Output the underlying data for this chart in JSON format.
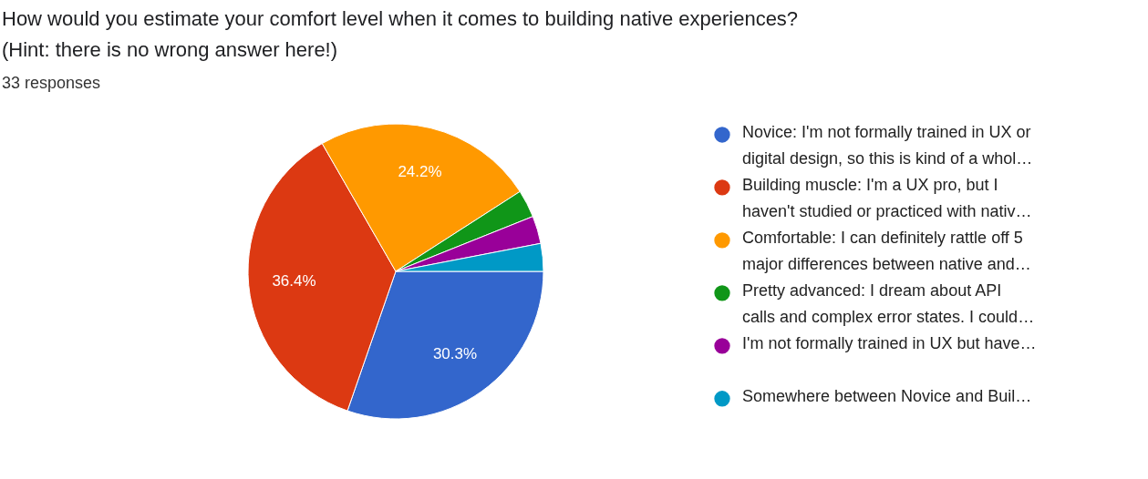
{
  "chart_data": {
    "type": "pie",
    "title": "How would you estimate your comfort level when it comes to building native experiences?\n(Hint: there is no wrong answer here!)",
    "subtitle": "33 responses",
    "categories": [
      "Novice: I'm not formally trained in UX or\ndigital design, so this is kind of a whol…",
      "Building muscle: I'm a UX pro, but I\nhaven't studied or practiced with nativ…",
      "Comfortable: I can definitely rattle off 5\nmajor differences between native and…",
      "Pretty advanced: I dream about API\ncalls and complex error states. I could…",
      "I'm not formally trained in UX but have…",
      "Somewhere between Novice and Buil…"
    ],
    "values": [
      30.3,
      36.4,
      24.2,
      3.03,
      3.03,
      3.04
    ],
    "colors": [
      "#3366cc",
      "#dc3912",
      "#ff9900",
      "#109618",
      "#990099",
      "#0099c6"
    ],
    "value_labels": [
      "30.3%",
      "36.4%",
      "24.2%",
      null,
      null,
      null
    ],
    "legend": "right"
  }
}
